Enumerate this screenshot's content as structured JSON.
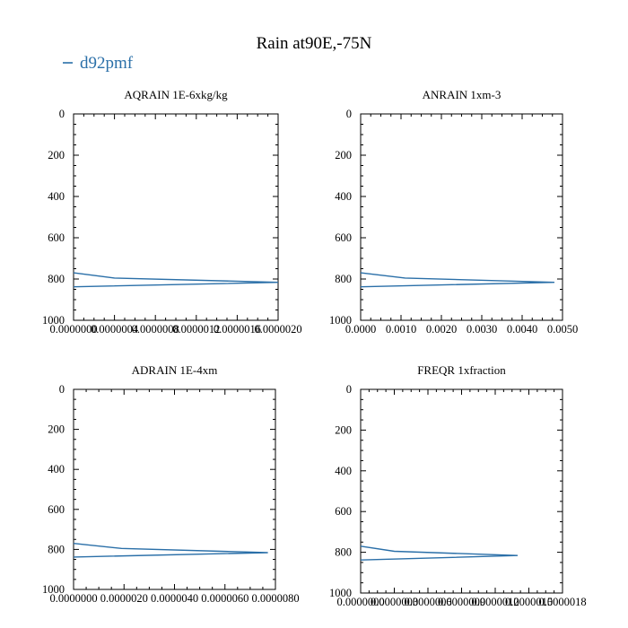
{
  "figure": {
    "title": "Rain at90E,-75N",
    "legend": [
      {
        "label": "d92pmf",
        "color": "#2a6fa8"
      }
    ]
  },
  "chart_data": [
    {
      "type": "line",
      "title": "AQRAIN  1E-6xkg/kg",
      "xlabel": "",
      "ylabel": "",
      "xlim": [
        0,
        2e-06
      ],
      "ylim": [
        1000,
        0
      ],
      "xticks": [
        "0.0000000",
        "0.0000004",
        "0.0000008",
        "0.0000012",
        "0.0000016",
        "0.0000020"
      ],
      "yticks": [
        "0",
        "200",
        "400",
        "600",
        "800",
        "1000"
      ],
      "series": [
        {
          "name": "d92pmf",
          "color": "#2a6fa8",
          "x": [
            0,
            4e-07,
            2e-06,
            0
          ],
          "y": [
            770,
            795,
            816,
            838
          ]
        }
      ]
    },
    {
      "type": "line",
      "title": "ANRAIN  1xm-3",
      "xlabel": "",
      "ylabel": "",
      "xlim": [
        0,
        0.005
      ],
      "ylim": [
        1000,
        0
      ],
      "xticks": [
        "0.0000",
        "0.0010",
        "0.0020",
        "0.0030",
        "0.0040",
        "0.0050"
      ],
      "yticks": [
        "0",
        "200",
        "400",
        "600",
        "800",
        "1000"
      ],
      "series": [
        {
          "name": "d92pmf",
          "color": "#2a6fa8",
          "x": [
            0,
            0.0011,
            0.0048,
            0
          ],
          "y": [
            770,
            795,
            816,
            838
          ]
        }
      ]
    },
    {
      "type": "line",
      "title": "ADRAIN  1E-4xm",
      "xlabel": "",
      "ylabel": "",
      "xlim": [
        0,
        8e-06
      ],
      "ylim": [
        1000,
        0
      ],
      "xticks": [
        "0.0000000",
        "0.0000020",
        "0.0000040",
        "0.0000060",
        "0.0000080"
      ],
      "yticks": [
        "0",
        "200",
        "400",
        "600",
        "800",
        "1000"
      ],
      "series": [
        {
          "name": "d92pmf",
          "color": "#2a6fa8",
          "x": [
            0,
            1.9e-06,
            7.7e-06,
            0
          ],
          "y": [
            770,
            795,
            816,
            838
          ]
        }
      ]
    },
    {
      "type": "line",
      "title": "FREQR  1xfraction",
      "xlabel": "",
      "ylabel": "",
      "xlim": [
        0,
        1.8e-06
      ],
      "ylim": [
        1000,
        0
      ],
      "xticks": [
        "0.0000000",
        "0.0000003",
        "0.0000006",
        "0.0000009",
        "0.0000012",
        "0.0000015",
        "0.0000018"
      ],
      "yticks": [
        "0",
        "200",
        "400",
        "600",
        "800",
        "1000"
      ],
      "series": [
        {
          "name": "d92pmf",
          "color": "#2a6fa8",
          "x": [
            0,
            3e-07,
            1.4e-06,
            0
          ],
          "y": [
            770,
            795,
            816,
            838
          ]
        }
      ]
    }
  ]
}
